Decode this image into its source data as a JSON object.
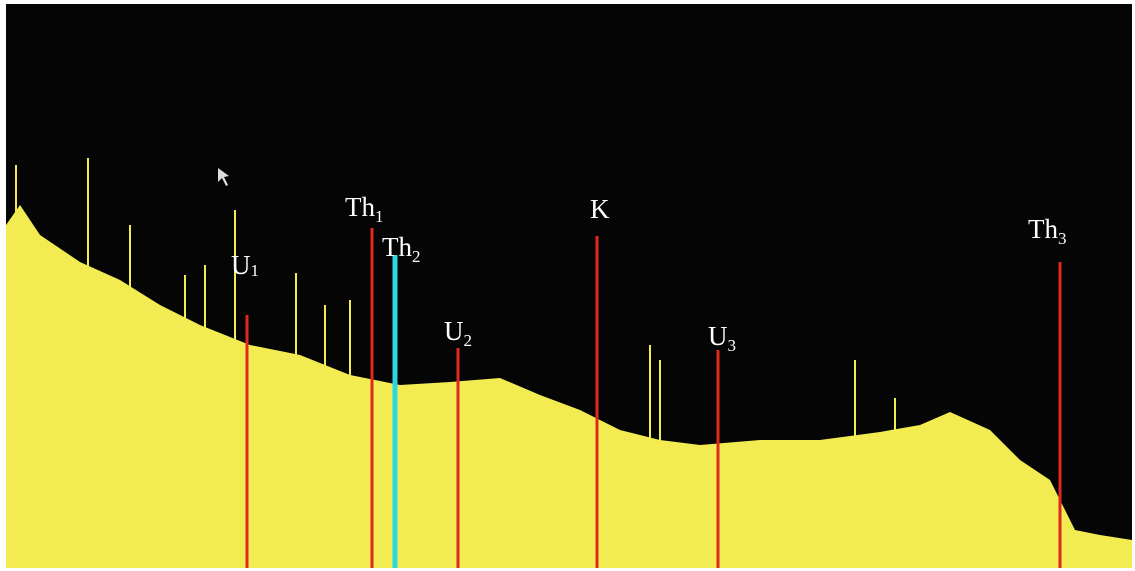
{
  "labels": [
    {
      "base": "U",
      "sub": "1"
    },
    {
      "base": "Th",
      "sub": "1"
    },
    {
      "base": "Th",
      "sub": "2"
    },
    {
      "base": "U",
      "sub": "2"
    },
    {
      "base": "K"
    },
    {
      "base": "U",
      "sub": "3"
    },
    {
      "base": "Th",
      "sub": "3"
    }
  ]
}
